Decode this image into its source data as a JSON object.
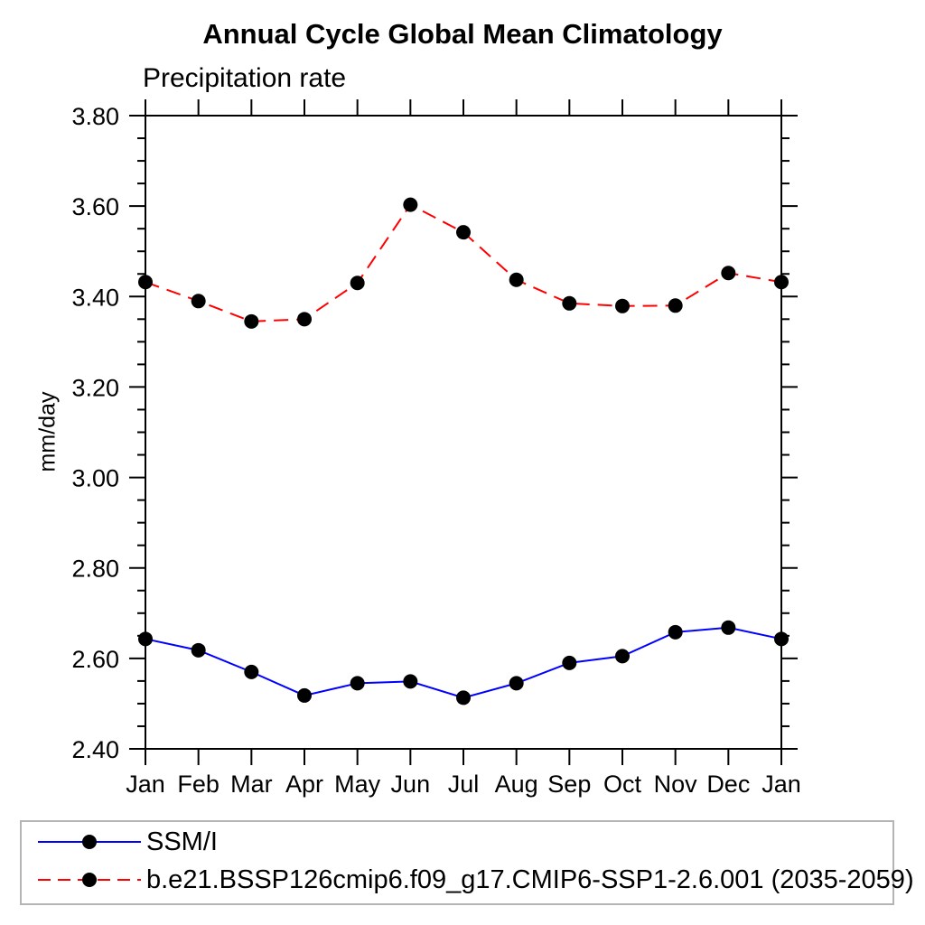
{
  "chart_data": {
    "type": "line",
    "title": "Annual Cycle Global Mean Climatology",
    "subtitle": "Precipitation rate",
    "ylabel": "mm/day",
    "xlabel": "",
    "categories": [
      "Jan",
      "Feb",
      "Mar",
      "Apr",
      "May",
      "Jun",
      "Jul",
      "Aug",
      "Sep",
      "Oct",
      "Nov",
      "Dec",
      "Jan"
    ],
    "ylim": [
      2.4,
      3.8
    ],
    "ytick_major": 0.2,
    "ytick_minor": 0.05,
    "ytick_labels": [
      "2.40",
      "2.60",
      "2.80",
      "3.00",
      "3.20",
      "3.40",
      "3.60",
      "3.80"
    ],
    "grid": false,
    "legend_position": "bottom",
    "marker": {
      "shape": "circle",
      "color": "#000000"
    },
    "series": [
      {
        "name": "SSM/I",
        "color": "#0000ff",
        "line_style": "solid",
        "values": [
          2.643,
          2.618,
          2.57,
          2.518,
          2.545,
          2.549,
          2.513,
          2.545,
          2.59,
          2.605,
          2.658,
          2.668,
          2.643
        ]
      },
      {
        "name": "b.e21.BSSP126cmip6.f09_g17.CMIP6-SSP1-2.6.001 (2035-2059)",
        "color": "#ff0000",
        "line_style": "dashed",
        "values": [
          3.432,
          3.39,
          3.345,
          3.35,
          3.43,
          3.603,
          3.542,
          3.437,
          3.385,
          3.379,
          3.38,
          3.452,
          3.432
        ]
      }
    ]
  }
}
